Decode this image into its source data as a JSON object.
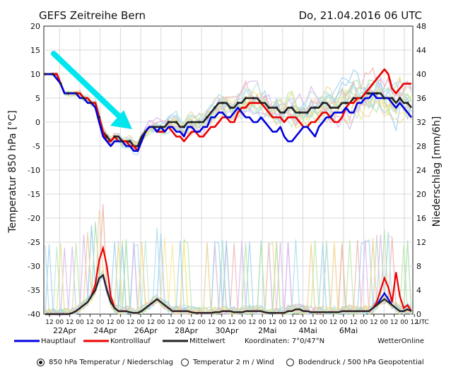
{
  "header": {
    "title": "GEFS Zeitreihe Bern",
    "run": "Do, 21.04.2016 06 UTC"
  },
  "chart_data": {
    "type": "line",
    "ylabel_left": "Temperatur 850 hPa [°C]",
    "ylabel_right": "Niederschlag [mm/6h]",
    "ylim_left": [
      -40,
      20
    ],
    "ylim_right": [
      0,
      48
    ],
    "yticks_left": [
      "20",
      "15",
      "10",
      "5",
      "0",
      "-5",
      "-10",
      "-15",
      "-20",
      "-25",
      "-30",
      "-35",
      "-40"
    ],
    "yticks_right": [
      "48",
      "44",
      "40",
      "36",
      "32",
      "28",
      "24",
      "20",
      "16",
      "12",
      "8",
      "4",
      "0"
    ],
    "x_hour_labels": [
      "12",
      "00",
      "12",
      "00",
      "12",
      "00",
      "12",
      "00",
      "12",
      "00",
      "12",
      "00",
      "12",
      "00",
      "12",
      "00",
      "12",
      "00",
      "12",
      "00",
      "12",
      "00",
      "12",
      "00",
      "12",
      "00",
      "12",
      "00",
      "12",
      "00",
      "12",
      "00",
      "12",
      "00",
      "12",
      "00",
      "12"
    ],
    "utc_label": "UTC",
    "date_labels": [
      "22Apr",
      "24Apr",
      "26Apr",
      "28Apr",
      "30Apr",
      "2Mai",
      "4Mai",
      "6Mai"
    ],
    "colors": {
      "hauptlauf": "#0000dd",
      "kontrolllauf": "#ee0000",
      "mittelwert": "#222222",
      "arrow": "#00e6ee",
      "members": [
        "#9fd0ef",
        "#b9e6a6",
        "#f3d3a3",
        "#f0b5b5",
        "#d8b8ee",
        "#a7ddf0",
        "#f7e88c",
        "#bde8d0"
      ]
    },
    "series": [
      {
        "name": "Hauptlauf",
        "role": "temp",
        "values": [
          10,
          10,
          10,
          9,
          8,
          6,
          6,
          6,
          6,
          5,
          5,
          4,
          4,
          3,
          0,
          -3,
          -4,
          -5,
          -4,
          -4,
          -4,
          -5,
          -5,
          -6,
          -6,
          -4,
          -2,
          -1,
          -1,
          -2,
          -1,
          -2,
          -1,
          -1,
          -2,
          -2,
          -3,
          -1,
          -1,
          -2,
          -2,
          -1,
          -1,
          1,
          1,
          2,
          2,
          1,
          1,
          2,
          3,
          2,
          1,
          1,
          0,
          0,
          1,
          0,
          -1,
          -2,
          -2,
          -1,
          -3,
          -4,
          -4,
          -3,
          -2,
          -1,
          -1,
          -2,
          -3,
          -1,
          0,
          1,
          1,
          2,
          2,
          2,
          3,
          2,
          2,
          4,
          4,
          5,
          5,
          6,
          5,
          5,
          5,
          5,
          4,
          3,
          4,
          3,
          2,
          1
        ]
      },
      {
        "name": "Kontrolllauf",
        "role": "temp",
        "values": [
          10,
          10,
          10,
          10,
          8,
          6,
          6,
          6,
          6,
          6,
          5,
          5,
          4,
          4,
          1,
          -2,
          -4,
          -4,
          -3,
          -4,
          -4,
          -4,
          -5,
          -5,
          -6,
          -4,
          -2,
          -1,
          -1,
          -2,
          -2,
          -2,
          -1,
          -2,
          -3,
          -3,
          -4,
          -3,
          -2,
          -2,
          -3,
          -3,
          -2,
          -1,
          -1,
          0,
          1,
          1,
          0,
          0,
          2,
          3,
          3,
          4,
          4,
          4,
          4,
          3,
          2,
          1,
          1,
          1,
          0,
          1,
          1,
          1,
          0,
          -1,
          -1,
          0,
          0,
          1,
          2,
          2,
          1,
          0,
          0,
          1,
          3,
          4,
          4,
          5,
          5,
          6,
          7,
          8,
          9,
          10,
          11,
          10,
          7,
          6,
          7,
          8,
          8,
          8
        ]
      },
      {
        "name": "Mittelwert",
        "role": "temp",
        "values": [
          10,
          10,
          10,
          10,
          8,
          6,
          6,
          6,
          6,
          6,
          5,
          5,
          4,
          4,
          1,
          -2,
          -3,
          -4,
          -3,
          -3,
          -4,
          -4,
          -4,
          -5,
          -5,
          -3,
          -2,
          -1,
          -1,
          -1,
          -1,
          -1,
          0,
          0,
          0,
          -1,
          -1,
          0,
          0,
          0,
          0,
          0,
          1,
          2,
          3,
          4,
          4,
          4,
          3,
          3,
          4,
          4,
          5,
          5,
          5,
          5,
          4,
          4,
          3,
          3,
          3,
          2,
          2,
          3,
          3,
          2,
          2,
          2,
          2,
          3,
          3,
          3,
          4,
          4,
          3,
          3,
          3,
          4,
          4,
          4,
          5,
          5,
          5,
          6,
          6,
          6,
          6,
          6,
          5,
          5,
          5,
          4,
          5,
          4,
          4,
          3
        ]
      },
      {
        "name": "Hauptlauf Niederschlag",
        "role": "precip",
        "values": [
          0,
          0,
          0,
          0,
          0,
          0,
          0,
          0.2,
          0.5,
          1,
          1.5,
          2,
          3,
          4,
          6,
          6.5,
          4,
          2,
          1,
          0.5,
          0.5,
          0.5,
          0.3,
          0.2,
          0.2,
          0.5,
          1,
          1.5,
          2,
          2.5,
          2,
          1.5,
          1,
          0.5,
          0.5,
          0.5,
          0.5,
          0.5,
          0.3,
          0.2,
          0.2,
          0.2,
          0.2,
          0.2,
          0.3,
          0.3,
          0.5,
          0.5,
          0.5,
          0.3,
          0.3,
          0.3,
          0.5,
          0.5,
          0.5,
          0.5,
          0.5,
          0.3,
          0.2,
          0.2,
          0.2,
          0.2,
          0.2,
          0.5,
          0.5,
          0.8,
          0.8,
          0.5,
          0.5,
          0.3,
          0.3,
          0.3,
          0.3,
          0.3,
          0.3,
          0.3,
          0.3,
          0.5,
          0.5,
          0.5,
          0.5,
          0.5,
          0.5,
          0.5,
          0.5,
          1,
          1.5,
          2.5,
          3.5,
          2.5,
          1.5,
          1,
          0.5,
          0.5,
          0.8,
          0.5
        ]
      },
      {
        "name": "Kontrolllauf Niederschlag",
        "role": "precip",
        "values": [
          0,
          0,
          0,
          0,
          0,
          0,
          0,
          0.2,
          0.5,
          1,
          1.5,
          2,
          3,
          5,
          9,
          11,
          8,
          3,
          1,
          0.5,
          0.5,
          0.5,
          0.3,
          0.2,
          0.2,
          0.5,
          1,
          1.5,
          2,
          2.5,
          2,
          1.5,
          1,
          0.5,
          0.5,
          0.5,
          0.5,
          0.5,
          0.3,
          0.2,
          0.2,
          0.2,
          0.2,
          0.2,
          0.3,
          0.3,
          0.5,
          0.5,
          0.5,
          0.3,
          0.3,
          0.3,
          0.5,
          0.5,
          0.5,
          0.5,
          0.5,
          0.3,
          0.2,
          0.2,
          0.2,
          0.2,
          0.2,
          0.5,
          0.5,
          0.8,
          0.8,
          0.5,
          0.5,
          0.3,
          0.3,
          0.3,
          0.3,
          0.3,
          0.3,
          0.3,
          0.3,
          0.5,
          0.5,
          0.5,
          0.5,
          0.5,
          0.5,
          0.5,
          0.5,
          1,
          2,
          4,
          6,
          4.5,
          2,
          7,
          3,
          1,
          1.5,
          0.5
        ]
      },
      {
        "name": "Mittelwert Niederschlag",
        "role": "precip",
        "values": [
          0,
          0,
          0,
          0,
          0,
          0,
          0,
          0.2,
          0.5,
          1,
          1.5,
          2,
          3,
          4,
          6,
          6.5,
          4,
          2,
          1,
          0.5,
          0.5,
          0.5,
          0.3,
          0.2,
          0.2,
          0.5,
          1,
          1.5,
          2,
          2.5,
          2,
          1.5,
          1,
          0.5,
          0.5,
          0.5,
          0.5,
          0.5,
          0.3,
          0.2,
          0.2,
          0.2,
          0.2,
          0.2,
          0.3,
          0.3,
          0.5,
          0.5,
          0.5,
          0.3,
          0.3,
          0.3,
          0.5,
          0.5,
          0.5,
          0.5,
          0.5,
          0.3,
          0.2,
          0.2,
          0.2,
          0.2,
          0.2,
          0.5,
          0.5,
          0.8,
          0.8,
          0.5,
          0.5,
          0.3,
          0.3,
          0.3,
          0.3,
          0.3,
          0.3,
          0.3,
          0.3,
          0.5,
          0.5,
          0.5,
          0.5,
          0.5,
          0.5,
          0.5,
          0.5,
          1,
          1.5,
          2,
          2.5,
          2,
          1.5,
          1,
          0.5,
          0.5,
          0.8,
          0.5
        ]
      }
    ],
    "legend": [
      {
        "label": "Hauptlauf",
        "color": "#0000dd"
      },
      {
        "label": "Kontrolllauf",
        "color": "#ee0000"
      },
      {
        "label": "Mittelwert",
        "color": "#222222"
      }
    ],
    "coordinates": "Koordinaten: 7°0/47°N",
    "source": "WetterOnline"
  },
  "controls": {
    "options": [
      {
        "label": "850 hPa Temperatur / Niederschlag",
        "selected": true
      },
      {
        "label": "Temperatur 2 m / Wind",
        "selected": false
      },
      {
        "label": "Bodendruck / 500 hPa Geopotential",
        "selected": false
      }
    ]
  }
}
